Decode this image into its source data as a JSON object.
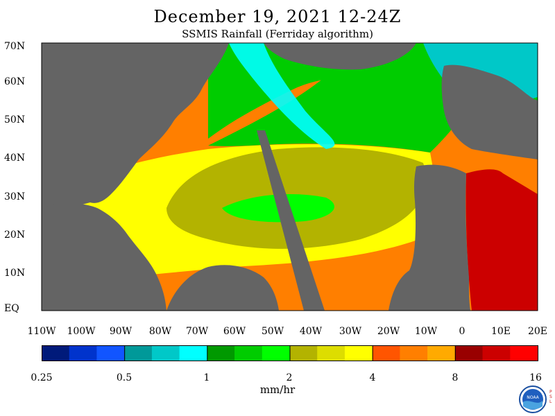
{
  "header": {
    "title": "December 19, 2021 12-24Z",
    "subtitle": "SSMIS Rainfall (Ferriday algorithm)"
  },
  "map": {
    "lat_labels": [
      "70N",
      "60N",
      "50N",
      "40N",
      "30N",
      "20N",
      "10N",
      "EQ"
    ],
    "lon_labels": [
      "110W",
      "100W",
      "90W",
      "80W",
      "70W",
      "60W",
      "50W",
      "40W",
      "30W",
      "20W",
      "10W",
      "0",
      "10E",
      "20E"
    ],
    "land_color": "#646464",
    "no_data_swath_color": "#646464"
  },
  "colorbar": {
    "colors": [
      "#001a7a",
      "#0033cc",
      "#1155ff",
      "#009999",
      "#00c8c8",
      "#00ffff",
      "#009900",
      "#00cc00",
      "#00ff00",
      "#b3b300",
      "#dddd00",
      "#ffff00",
      "#ff5500",
      "#ff7f00",
      "#ffaa00",
      "#990000",
      "#cc0000",
      "#ff0000"
    ],
    "tick_labels": [
      "0.25",
      "0.5",
      "1",
      "2",
      "4",
      "8",
      "16"
    ],
    "units": "mm/hr"
  },
  "logo": {
    "text": "NOAA",
    "side_text": [
      "P",
      "S",
      "L"
    ]
  }
}
